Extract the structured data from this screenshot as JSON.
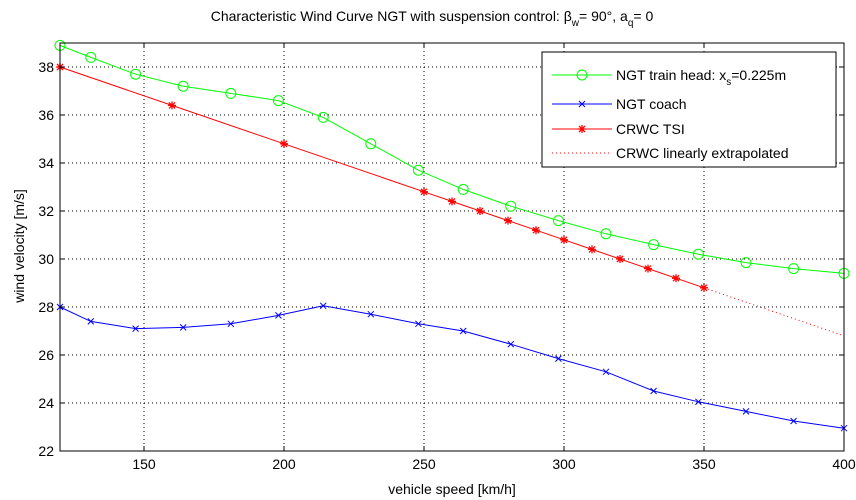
{
  "chart_data": {
    "type": "line",
    "title": {
      "prefix": "Characteristic Wind Curve NGT with suspension control: β",
      "sub1": "w",
      "mid": "= 90°, a",
      "sub2": "q",
      "suffix": "= 0"
    },
    "xlabel": "vehicle speed [km/h]",
    "ylabel": "wind velocity [m/s]",
    "xlim": [
      120,
      400
    ],
    "ylim": [
      22,
      39
    ],
    "xticks": [
      150,
      200,
      250,
      300,
      350,
      400
    ],
    "yticks": [
      22,
      24,
      26,
      28,
      30,
      32,
      34,
      36,
      38
    ],
    "grid": true,
    "legend_position": "top-right",
    "series": [
      {
        "name": "NGT train head",
        "legend_label": {
          "main": "NGT train head: x",
          "sub": "s",
          "tail": "=0.225m"
        },
        "color": "#00ff00",
        "marker": "circle",
        "line": "solid",
        "x": [
          120,
          131,
          147,
          164,
          181,
          198,
          214,
          231,
          248,
          264,
          281,
          298,
          315,
          332,
          348,
          365,
          382,
          400
        ],
        "y": [
          38.9,
          38.4,
          37.7,
          37.2,
          36.9,
          36.6,
          35.9,
          34.8,
          33.7,
          32.9,
          32.2,
          31.6,
          31.05,
          30.6,
          30.2,
          29.85,
          29.6,
          29.4
        ]
      },
      {
        "name": "NGT coach",
        "color": "#0000ff",
        "marker": "x",
        "line": "solid",
        "x": [
          120,
          131,
          147,
          164,
          181,
          198,
          214,
          231,
          248,
          264,
          281,
          298,
          315,
          332,
          348,
          365,
          382,
          400
        ],
        "y": [
          28.0,
          27.4,
          27.1,
          27.15,
          27.3,
          27.65,
          28.05,
          27.7,
          27.3,
          27.0,
          26.45,
          25.85,
          25.3,
          24.5,
          24.05,
          23.65,
          23.25,
          22.95
        ]
      },
      {
        "name": "CRWC TSI",
        "color": "#ff0000",
        "marker": "star",
        "line": "solid",
        "x": [
          120,
          160,
          200,
          250,
          260,
          270,
          280,
          290,
          300,
          310,
          320,
          330,
          340,
          350
        ],
        "y": [
          38.0,
          36.4,
          34.8,
          32.8,
          32.4,
          32.0,
          31.6,
          31.2,
          30.8,
          30.4,
          30.0,
          29.6,
          29.2,
          28.8
        ]
      },
      {
        "name": "CRWC linearly extrapolated",
        "color": "#ff0000",
        "marker": "none",
        "line": "dotted",
        "x": [
          350,
          400
        ],
        "y": [
          28.8,
          26.8
        ]
      }
    ]
  }
}
